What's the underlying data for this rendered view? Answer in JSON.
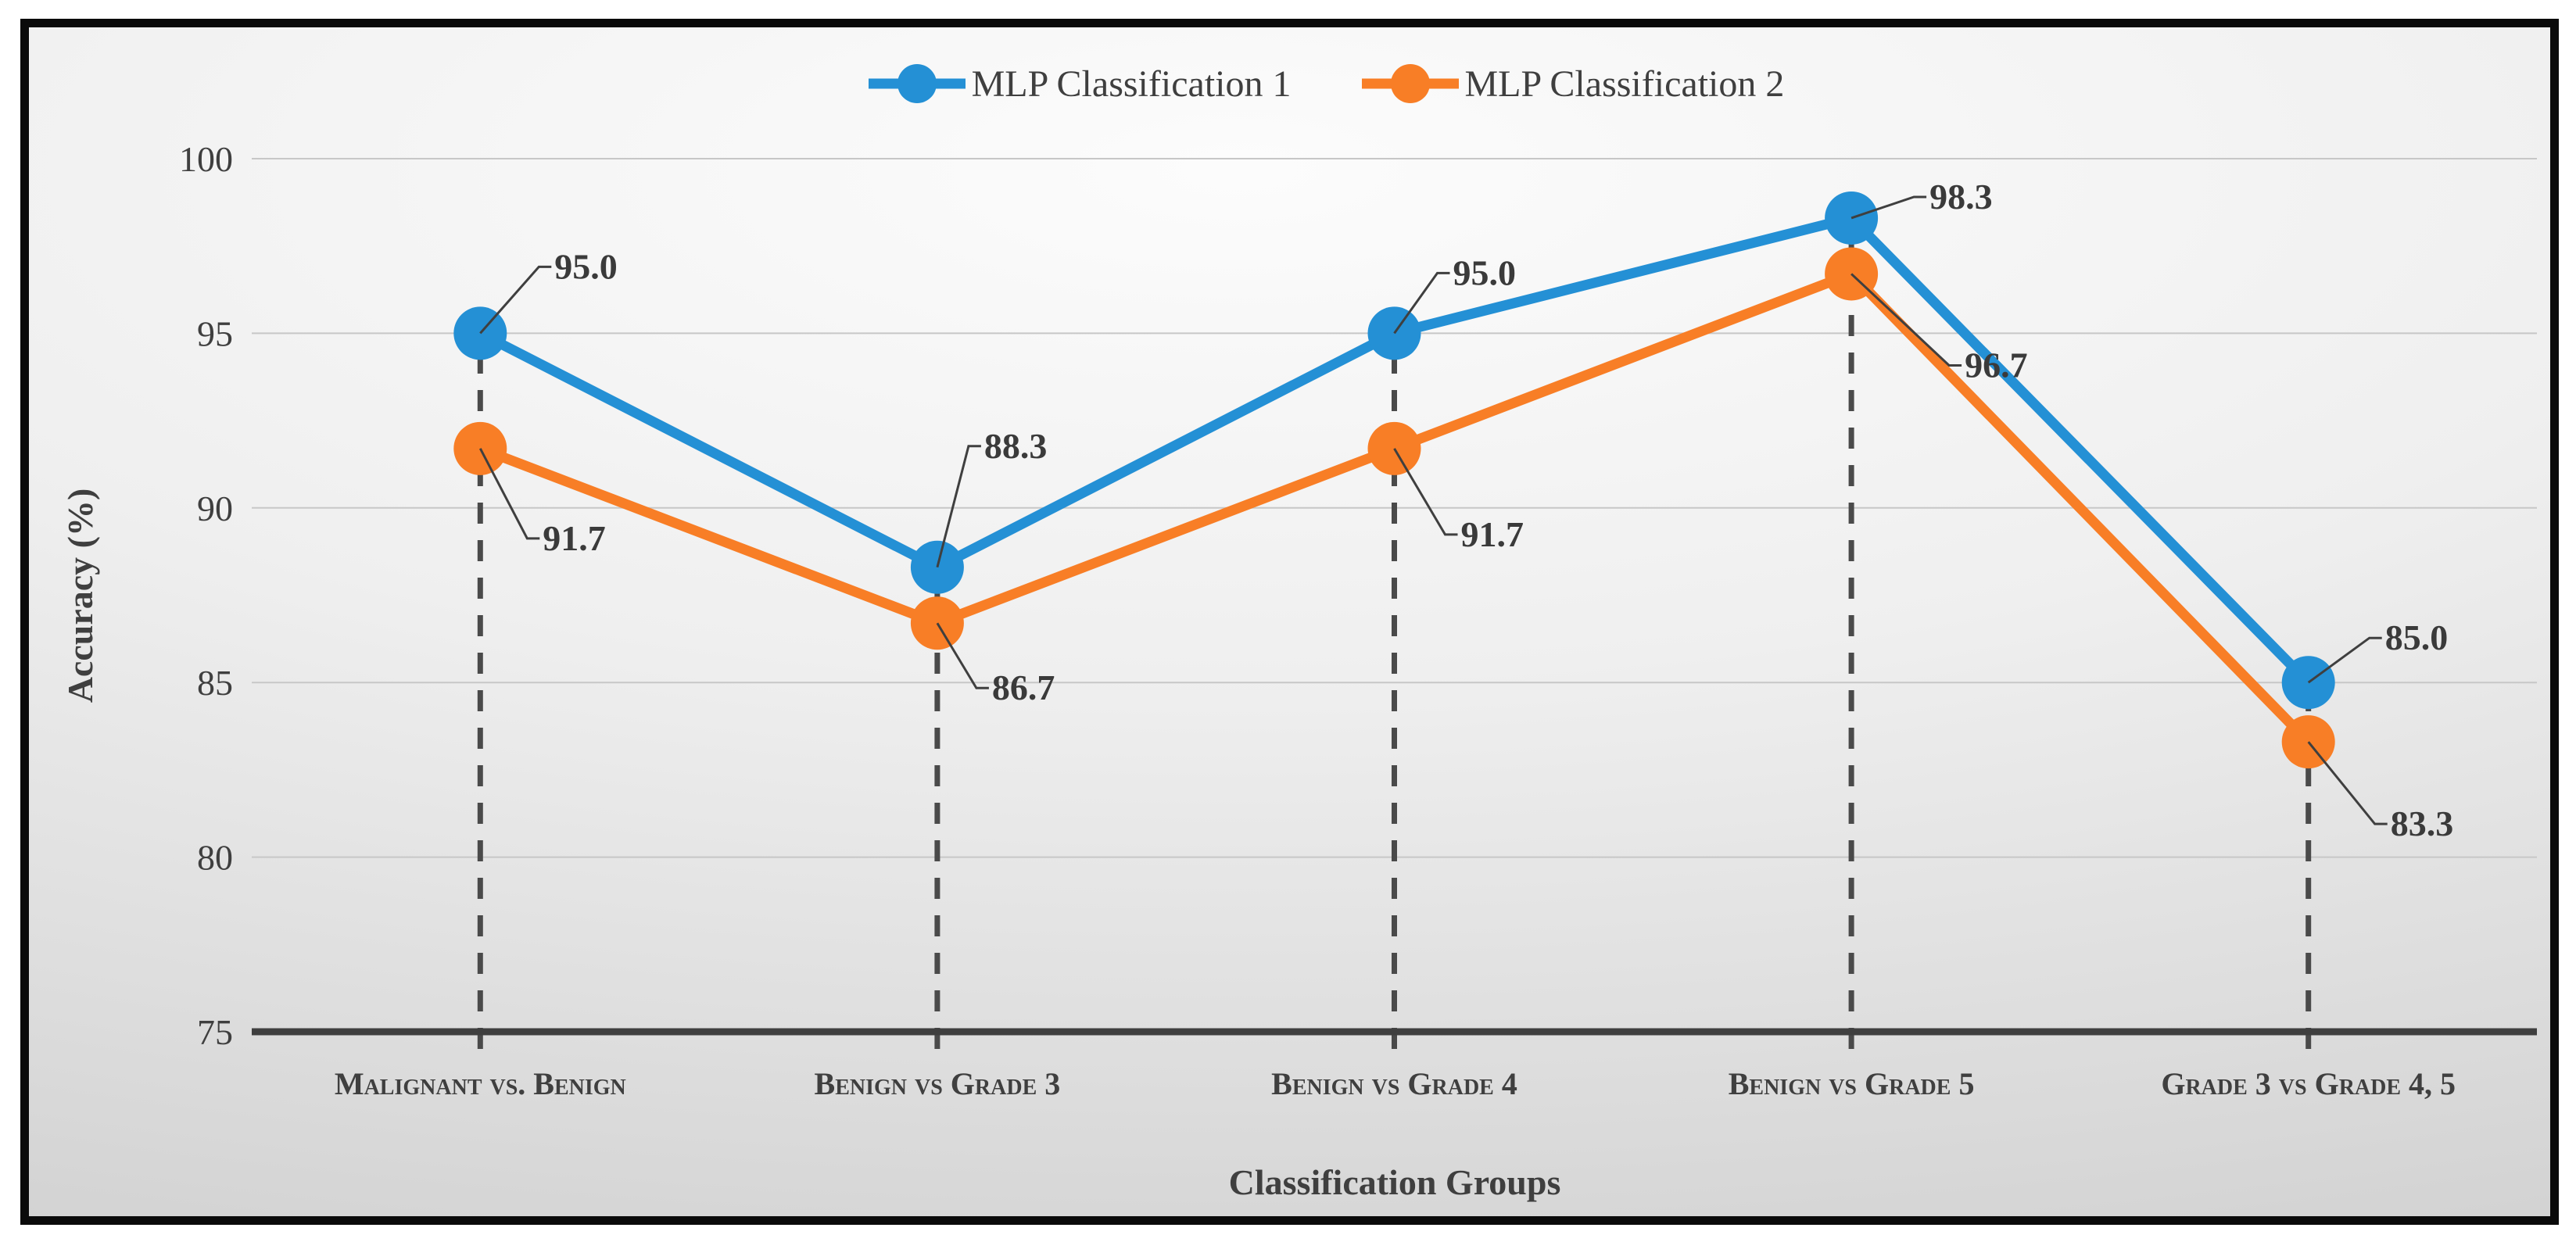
{
  "chart_data": {
    "type": "line",
    "title": "",
    "xlabel": "Classification Groups",
    "ylabel": "Accuracy (%)",
    "categories": [
      "Malignant vs. Benign",
      "Benign vs Grade 3",
      "Benign vs Grade 4",
      "Benign vs Grade 5",
      "Grade 3 vs Grade 4, 5"
    ],
    "series": [
      {
        "name": "MLP Classification 1",
        "color": "#2490D5",
        "values": [
          95.0,
          88.3,
          95.0,
          98.3,
          85.0
        ],
        "labels": [
          "95.0",
          "88.3",
          "95.0",
          "98.3",
          "85.0"
        ],
        "label_offsets": [
          [
            95,
            -70
          ],
          [
            60,
            -140
          ],
          [
            75,
            -62
          ],
          [
            100,
            -12
          ],
          [
            98,
            -42
          ]
        ]
      },
      {
        "name": "MLP Classification 2",
        "color": "#F87E26",
        "values": [
          91.7,
          86.7,
          91.7,
          96.7,
          83.3
        ],
        "labels": [
          "91.7",
          "86.7",
          "91.7",
          "96.7",
          "83.3"
        ],
        "label_offsets": [
          [
            80,
            130
          ],
          [
            70,
            98
          ],
          [
            85,
            125
          ],
          [
            145,
            132
          ],
          [
            105,
            120
          ]
        ]
      }
    ],
    "y_ticks": [
      75,
      80,
      85,
      90,
      95,
      100
    ],
    "ylim": [
      75,
      100
    ],
    "grid": true,
    "legend_position": "top",
    "dropline_categories": [
      0,
      1,
      2,
      3,
      4
    ],
    "colors": {
      "axis": "#3f3f3f",
      "grid": "#c7c7c7",
      "dashed_dropline": "#4a4a4a",
      "leader": "#3f3f3f",
      "text": "#3f3f3f",
      "frame_border": "#0a0a0a"
    }
  },
  "legend": {
    "marker_icons": [
      "line-circle-marker-icon",
      "line-circle-marker-icon"
    ]
  }
}
